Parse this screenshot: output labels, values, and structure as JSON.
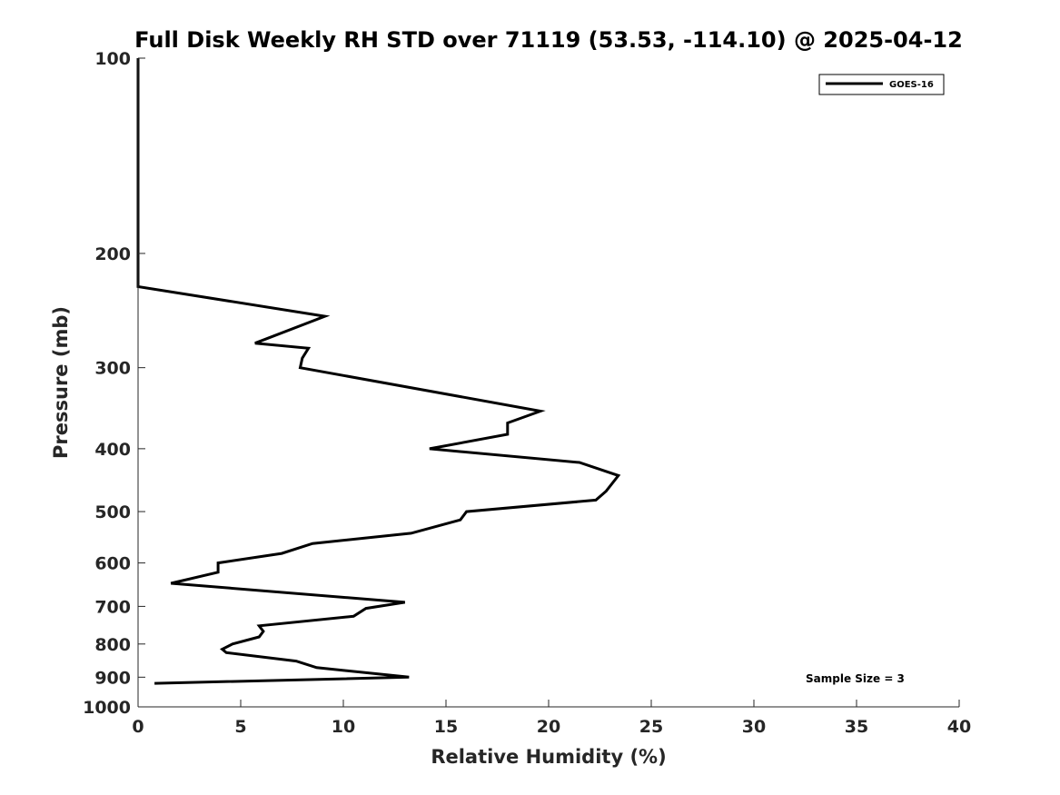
{
  "chart_data": {
    "type": "line",
    "title": "Full Disk Weekly RH STD over 71119 (53.53, -114.10) @ 2025-04-12",
    "xlabel": "Relative Humidity (%)",
    "ylabel": "Pressure (mb)",
    "xlim": [
      0,
      40
    ],
    "ylim": [
      100,
      1000
    ],
    "yscale": "log",
    "y_reversed": true,
    "xticks": [
      0,
      5,
      10,
      15,
      20,
      25,
      30,
      35,
      40
    ],
    "yticks": [
      100,
      200,
      300,
      400,
      500,
      600,
      700,
      800,
      900,
      1000
    ],
    "grid": false,
    "legend_position": "top-right",
    "annotation": "Sample Size = 3",
    "series": [
      {
        "name": "GOES-16",
        "color": "#000000",
        "points": [
          {
            "x": 0.0,
            "y": 100
          },
          {
            "x": 0.0,
            "y": 125
          },
          {
            "x": 0.0,
            "y": 150
          },
          {
            "x": 0.0,
            "y": 175
          },
          {
            "x": 0.0,
            "y": 200
          },
          {
            "x": 0.0,
            "y": 225
          },
          {
            "x": 9.1,
            "y": 250
          },
          {
            "x": 5.7,
            "y": 275
          },
          {
            "x": 8.3,
            "y": 280
          },
          {
            "x": 8.0,
            "y": 290
          },
          {
            "x": 7.9,
            "y": 300
          },
          {
            "x": 19.6,
            "y": 350
          },
          {
            "x": 18.0,
            "y": 365
          },
          {
            "x": 18.0,
            "y": 380
          },
          {
            "x": 14.2,
            "y": 400
          },
          {
            "x": 21.5,
            "y": 420
          },
          {
            "x": 23.4,
            "y": 440
          },
          {
            "x": 22.8,
            "y": 465
          },
          {
            "x": 22.3,
            "y": 480
          },
          {
            "x": 16.0,
            "y": 500
          },
          {
            "x": 15.7,
            "y": 515
          },
          {
            "x": 13.3,
            "y": 540
          },
          {
            "x": 8.5,
            "y": 560
          },
          {
            "x": 7.0,
            "y": 580
          },
          {
            "x": 3.9,
            "y": 600
          },
          {
            "x": 3.9,
            "y": 620
          },
          {
            "x": 1.6,
            "y": 645
          },
          {
            "x": 13.0,
            "y": 690
          },
          {
            "x": 11.1,
            "y": 705
          },
          {
            "x": 10.5,
            "y": 725
          },
          {
            "x": 5.9,
            "y": 750
          },
          {
            "x": 6.1,
            "y": 765
          },
          {
            "x": 5.9,
            "y": 780
          },
          {
            "x": 4.6,
            "y": 800
          },
          {
            "x": 4.1,
            "y": 815
          },
          {
            "x": 4.3,
            "y": 825
          },
          {
            "x": 7.7,
            "y": 850
          },
          {
            "x": 8.7,
            "y": 870
          },
          {
            "x": 13.2,
            "y": 900
          },
          {
            "x": 0.8,
            "y": 920
          }
        ]
      }
    ]
  }
}
